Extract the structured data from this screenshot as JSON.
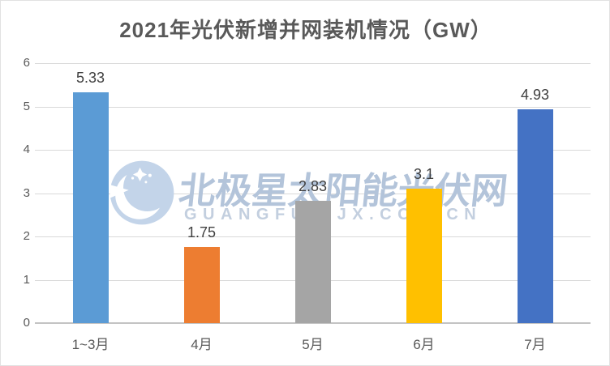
{
  "title": "2021年光伏新增并网装机情况（GW）",
  "chart_data": {
    "type": "bar",
    "title": "2021年光伏新增并网装机情况（GW）",
    "categories": [
      "1~3月",
      "4月",
      "5月",
      "6月",
      "7月"
    ],
    "values": [
      5.33,
      1.75,
      2.83,
      3.1,
      4.93
    ],
    "value_labels": [
      "5.33",
      "1.75",
      "2.83",
      "3.1",
      "4.93"
    ],
    "bar_colors": [
      "#5B9BD5",
      "#ED7D31",
      "#A5A5A5",
      "#FFC000",
      "#4472C4"
    ],
    "xlabel": "",
    "ylabel": "",
    "ylim": [
      0,
      6
    ],
    "yticks": [
      "0",
      "1",
      "2",
      "3",
      "4",
      "5",
      "6"
    ],
    "grid": true,
    "legend": "none",
    "gridline_color": "#D9D9D9",
    "axis_line_color": "#C3C3C3",
    "tick_label_color": "#595959",
    "value_label_color": "#404040",
    "title_color": "#595959"
  },
  "watermark": {
    "text": "北极星太阳能光伏网",
    "url": "GUANGFU.BJX.COM.CN",
    "color": "#B3C4DA"
  }
}
